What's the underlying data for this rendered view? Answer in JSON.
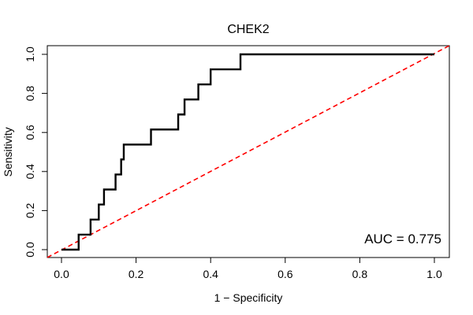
{
  "chart_data": {
    "type": "line",
    "title": "CHEK2",
    "xlabel": "1 − Specificity",
    "ylabel": "Sensitivity",
    "xlim": [
      0,
      1
    ],
    "ylim": [
      0,
      1
    ],
    "x_ticks": [
      "0.0",
      "0.2",
      "0.4",
      "0.6",
      "0.8",
      "1.0"
    ],
    "y_ticks": [
      "0.0",
      "0.2",
      "0.4",
      "0.6",
      "0.8",
      "1.0"
    ],
    "grid": false,
    "legend": "none",
    "annotation": "AUC = 0.775",
    "series": [
      {
        "color": "#000000",
        "style": "solid",
        "x": [
          0.0,
          0.046,
          0.046,
          0.06,
          0.06,
          0.078,
          0.078,
          0.1,
          0.1,
          0.114,
          0.114,
          0.145,
          0.145,
          0.16,
          0.16,
          0.167,
          0.167,
          0.24,
          0.24,
          0.313,
          0.313,
          0.323,
          0.323,
          0.33,
          0.33,
          0.367,
          0.367,
          0.4,
          0.4,
          0.42,
          0.42,
          0.48,
          0.48,
          1.0
        ],
        "y": [
          0.0,
          0.0,
          0.077,
          0.077,
          0.077,
          0.077,
          0.154,
          0.154,
          0.231,
          0.231,
          0.308,
          0.308,
          0.385,
          0.385,
          0.462,
          0.462,
          0.538,
          0.538,
          0.615,
          0.615,
          0.692,
          0.692,
          0.692,
          0.692,
          0.769,
          0.769,
          0.846,
          0.846,
          0.923,
          0.923,
          0.923,
          0.923,
          1.0,
          1.0
        ]
      },
      {
        "color": "#ff0000",
        "style": "dashed",
        "x": [
          0,
          1
        ],
        "y": [
          0,
          1
        ]
      }
    ]
  }
}
